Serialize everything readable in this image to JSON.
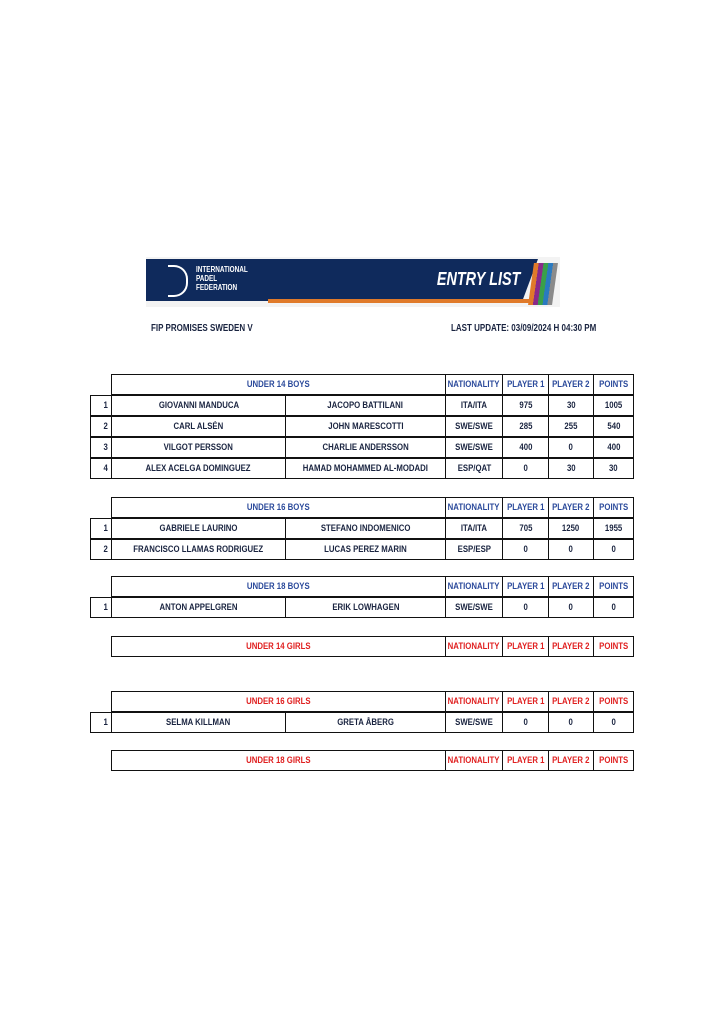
{
  "header": {
    "logo_text": [
      "INTERNATIONAL",
      "PADEL",
      "FEDERATION"
    ],
    "title": "ENTRY LIST",
    "tournament": "FIP PROMISES SWEDEN V",
    "last_update": "LAST UPDATE: 03/09/2024 H 04:30 PM"
  },
  "colors": {
    "navy": "#0f2a5c",
    "orange": "#e07a2a",
    "boys_header": "#2b4a9b",
    "girls_header": "#e02020"
  },
  "columns": {
    "nationality": "NATIONALITY",
    "player1": "PLAYER 1",
    "player2": "PLAYER 2",
    "points": "POINTS"
  },
  "sections": [
    {
      "title": "UNDER 14 BOYS",
      "rows": [
        {
          "rank": "1",
          "p1": "GIOVANNI MANDUCA",
          "p2": "JACOPO BATTILANI",
          "nat": "ITA/ITA",
          "pts1": "975",
          "pts2": "30",
          "total": "1005"
        },
        {
          "rank": "2",
          "p1": "CARL ALSÉN",
          "p2": "JOHN MARESCOTTI",
          "nat": "SWE/SWE",
          "pts1": "285",
          "pts2": "255",
          "total": "540"
        },
        {
          "rank": "3",
          "p1": "VILGOT PERSSON",
          "p2": "CHARLIE ANDERSSON",
          "nat": "SWE/SWE",
          "pts1": "400",
          "pts2": "0",
          "total": "400"
        },
        {
          "rank": "4",
          "p1": "ALEX ACELGA DOMINGUEZ",
          "p2": "HAMAD MOHAMMED AL-MODADI",
          "nat": "ESP/QAT",
          "pts1": "0",
          "pts2": "30",
          "total": "30"
        }
      ]
    },
    {
      "title": "UNDER 16 BOYS",
      "rows": [
        {
          "rank": "1",
          "p1": "GABRIELE LAURINO",
          "p2": "STEFANO INDOMENICO",
          "nat": "ITA/ITA",
          "pts1": "705",
          "pts2": "1250",
          "total": "1955"
        },
        {
          "rank": "2",
          "p1": "FRANCISCO LLAMAS RODRIGUEZ",
          "p2": "LUCAS PEREZ MARIN",
          "nat": "ESP/ESP",
          "pts1": "0",
          "pts2": "0",
          "total": "0"
        }
      ]
    },
    {
      "title": "UNDER 18 BOYS",
      "rows": [
        {
          "rank": "1",
          "p1": "ANTON APPELGREN",
          "p2": "ERIK LOWHAGEN",
          "nat": "SWE/SWE",
          "pts1": "0",
          "pts2": "0",
          "total": "0"
        }
      ]
    },
    {
      "title": "UNDER 14 GIRLS",
      "rows": []
    },
    {
      "title": "UNDER 16 GIRLS",
      "rows": [
        {
          "rank": "1",
          "p1": "SELMA KILLMAN",
          "p2": "GRETA ÅBERG",
          "nat": "SWE/SWE",
          "pts1": "0",
          "pts2": "0",
          "total": "0"
        }
      ]
    },
    {
      "title": "UNDER 18 GIRLS",
      "rows": []
    }
  ]
}
